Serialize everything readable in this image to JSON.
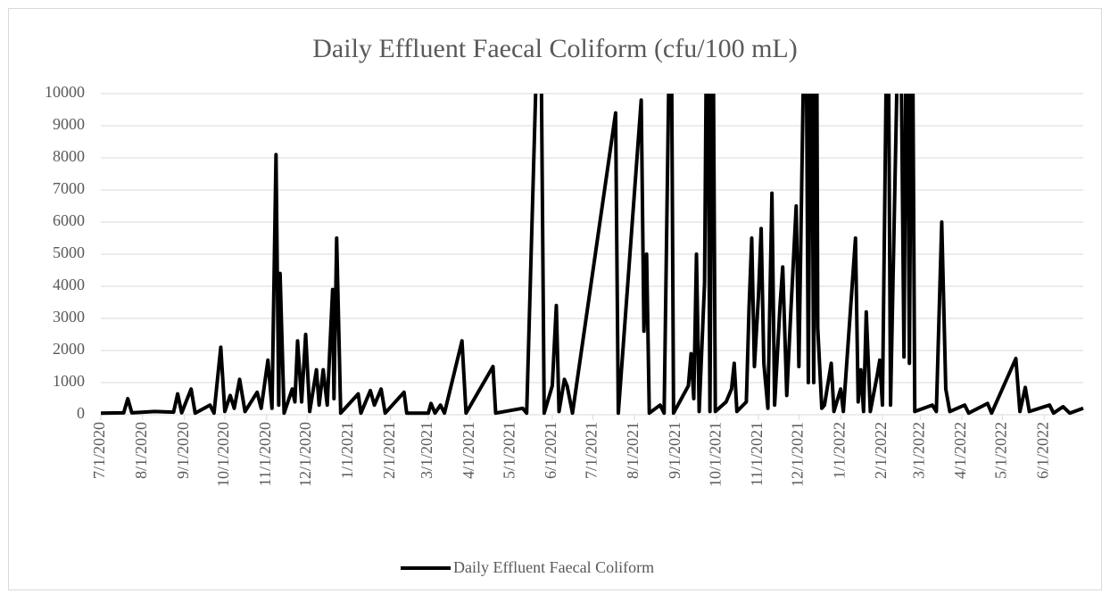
{
  "chart_data": {
    "type": "line",
    "title": "Daily Effluent Faecal Coliform (cfu/100 mL)",
    "x": [
      "7/1/2020",
      "7/18/2020",
      "7/21/2020",
      "7/24/2020",
      "8/10/2020",
      "8/24/2020",
      "8/27/2020",
      "8/30/2020",
      "9/6/2020",
      "9/9/2020",
      "9/20/2020",
      "9/23/2020",
      "9/28/2020",
      "10/1/2020",
      "10/5/2020",
      "10/8/2020",
      "10/12/2020",
      "10/16/2020",
      "10/25/2020",
      "10/28/2020",
      "11/2/2020",
      "11/5/2020",
      "11/8/2020",
      "11/10/2020",
      "11/11/2020",
      "11/14/2020",
      "11/20/2020",
      "11/22/2020",
      "11/24/2020",
      "11/27/2020",
      "11/30/2020",
      "12/3/2020",
      "12/8/2020",
      "12/10/2020",
      "12/13/2020",
      "12/16/2020",
      "12/20/2020",
      "12/21/2020",
      "12/23/2020",
      "12/26/2020",
      "1/8/2021",
      "1/10/2021",
      "1/17/2021",
      "1/20/2021",
      "1/25/2021",
      "1/28/2021",
      "2/11/2021",
      "2/13/2021",
      "3/1/2021",
      "3/3/2021",
      "3/6/2021",
      "3/10/2021",
      "3/13/2021",
      "3/26/2021",
      "3/29/2021",
      "4/18/2021",
      "4/20/2021",
      "5/10/2021",
      "5/13/2021",
      "5/23/2021",
      "5/26/2021",
      "6/1/2021",
      "6/4/2021",
      "6/6/2021",
      "6/10/2021",
      "6/12/2021",
      "6/16/2021",
      "7/18/2021",
      "7/20/2021",
      "8/6/2021",
      "8/8/2021",
      "8/10/2021",
      "8/12/2021",
      "8/20/2021",
      "8/23/2021",
      "8/28/2021",
      "8/30/2021",
      "9/10/2021",
      "9/12/2021",
      "9/14/2021",
      "9/16/2021",
      "9/18/2021",
      "9/22/2021",
      "9/24/2021",
      "9/26/2021",
      "9/28/2021",
      "9/30/2021",
      "10/8/2021",
      "10/12/2021",
      "10/14/2021",
      "10/16/2021",
      "10/23/2021",
      "10/25/2021",
      "10/27/2021",
      "10/29/2021",
      "11/1/2021",
      "11/3/2021",
      "11/5/2021",
      "11/8/2021",
      "11/11/2021",
      "11/13/2021",
      "11/17/2021",
      "11/19/2021",
      "11/22/2021",
      "11/25/2021",
      "11/29/2021",
      "12/1/2021",
      "12/6/2021",
      "12/8/2021",
      "12/10/2021",
      "12/12/2021",
      "12/14/2021",
      "12/15/2021",
      "12/18/2021",
      "12/20/2021",
      "12/25/2021",
      "12/27/2021",
      "1/1/2022",
      "1/3/2022",
      "1/12/2022",
      "1/14/2022",
      "1/16/2022",
      "1/18/2022",
      "1/20/2022",
      "1/23/2022",
      "1/28/2022",
      "1/30/2022",
      "2/1/2022",
      "2/5/2022",
      "2/7/2022",
      "2/14/2022",
      "2/17/2022",
      "2/19/2022",
      "2/21/2022",
      "2/23/2022",
      "2/25/2022",
      "3/10/2022",
      "3/13/2022",
      "3/17/2022",
      "3/20/2022",
      "3/23/2022",
      "4/3/2022",
      "4/6/2022",
      "4/20/2022",
      "4/23/2022",
      "5/11/2022",
      "5/14/2022",
      "5/18/2022",
      "5/21/2022",
      "6/5/2022",
      "6/8/2022",
      "6/15/2022",
      "6/20/2022",
      "6/30/2022"
    ],
    "series": [
      {
        "name": "Daily Effluent Faecal Coliform",
        "color": "#000000",
        "values": [
          50,
          60,
          500,
          60,
          100,
          80,
          650,
          60,
          800,
          50,
          300,
          50,
          2100,
          100,
          600,
          200,
          1100,
          100,
          700,
          200,
          1700,
          200,
          8100,
          300,
          4400,
          50,
          800,
          400,
          2300,
          400,
          2500,
          100,
          1400,
          300,
          1400,
          300,
          3900,
          500,
          5500,
          50,
          650,
          50,
          750,
          300,
          800,
          50,
          700,
          50,
          50,
          350,
          50,
          300,
          50,
          2300,
          50,
          1500,
          50,
          200,
          50,
          15000,
          50,
          900,
          3400,
          100,
          1100,
          900,
          50,
          9400,
          50,
          9800,
          2600,
          5000,
          50,
          300,
          50,
          15000,
          50,
          900,
          1900,
          500,
          5000,
          100,
          4100,
          15000,
          100,
          15000,
          100,
          400,
          800,
          1600,
          100,
          400,
          3300,
          5500,
          1500,
          3700,
          5800,
          1600,
          200,
          6900,
          300,
          3400,
          4600,
          600,
          3200,
          6500,
          1500,
          15000,
          1000,
          15000,
          1000,
          15000,
          2700,
          200,
          300,
          1600,
          100,
          800,
          100,
          5500,
          400,
          1400,
          100,
          3200,
          100,
          1200,
          1700,
          300,
          15000,
          300,
          15000,
          1800,
          15000,
          1600,
          15000,
          100,
          300,
          100,
          6000,
          800,
          100,
          300,
          50,
          350,
          50,
          1750,
          100,
          850,
          100,
          300,
          50,
          250,
          50,
          200
        ]
      }
    ],
    "xlim": [
      "7/1/2020",
      "6/30/2022"
    ],
    "xticks": [
      "7/1/2020",
      "8/1/2020",
      "9/1/2020",
      "10/1/2020",
      "11/1/2020",
      "12/1/2020",
      "1/1/2021",
      "2/1/2021",
      "3/1/2021",
      "4/1/2021",
      "5/1/2021",
      "6/1/2021",
      "7/1/2021",
      "8/1/2021",
      "9/1/2021",
      "10/1/2021",
      "11/1/2021",
      "12/1/2021",
      "1/1/2022",
      "2/1/2022",
      "3/1/2022",
      "4/1/2022",
      "5/1/2022",
      "6/1/2022"
    ],
    "ylim": [
      0,
      10000
    ],
    "yticks": [
      0,
      1000,
      2000,
      3000,
      4000,
      5000,
      6000,
      7000,
      8000,
      9000,
      10000
    ],
    "grid": true,
    "legend": "bottom"
  }
}
